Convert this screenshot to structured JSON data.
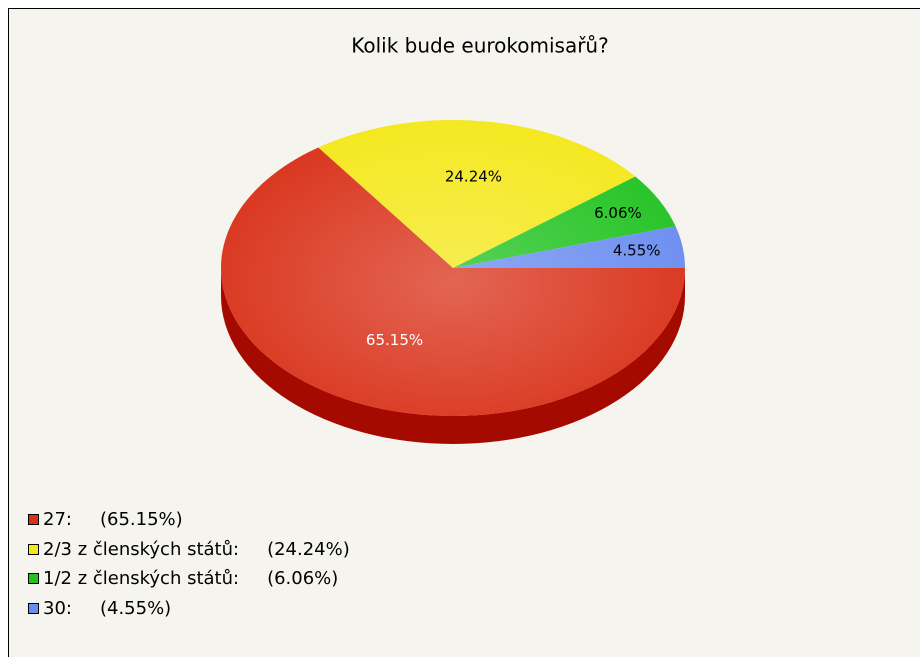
{
  "chart_data": {
    "type": "pie",
    "title": "Kolik bude eurokomisařů?",
    "categories": [
      "27:",
      "2/3 z členských států:",
      "1/2 z členských států:",
      "30:"
    ],
    "values": [
      65.15,
      24.24,
      6.06,
      4.55
    ],
    "value_labels": [
      "65.15%",
      "24.24%",
      "6.06%",
      "4.55%"
    ],
    "legend_value_labels": [
      "(65.15%)",
      "(24.24%)",
      "(6.06%)",
      "(4.55%)"
    ],
    "colors": [
      "#d9321a",
      "#f4e81c",
      "#22c322",
      "#6a8cf0"
    ],
    "side_colors": [
      "#a50a00",
      "#b8aa00",
      "#108a10",
      "#3a5cc0"
    ],
    "legend": "bottom-left"
  }
}
